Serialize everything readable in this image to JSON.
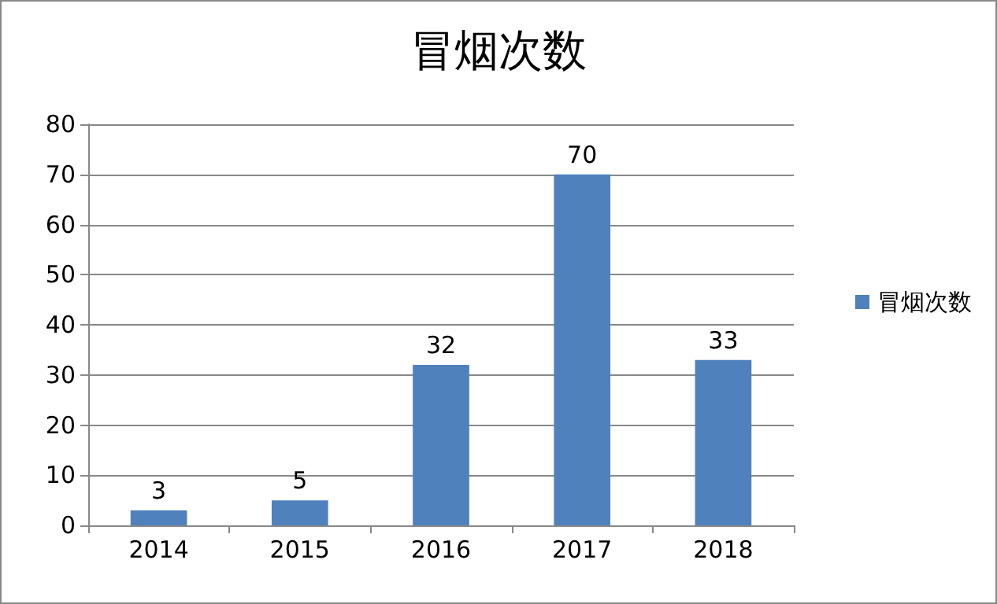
{
  "chart_data": {
    "type": "bar",
    "title": "冒烟次数",
    "categories": [
      "2014",
      "2015",
      "2016",
      "2017",
      "2018"
    ],
    "series": [
      {
        "name": "冒烟次数",
        "color": "#4f81bd",
        "values": [
          3,
          5,
          32,
          70,
          33
        ]
      }
    ],
    "ylim": [
      0,
      80
    ],
    "yticks": [
      0,
      10,
      20,
      30,
      40,
      50,
      60,
      70,
      80
    ],
    "grid": "y",
    "legend": "right",
    "data_labels": true
  }
}
